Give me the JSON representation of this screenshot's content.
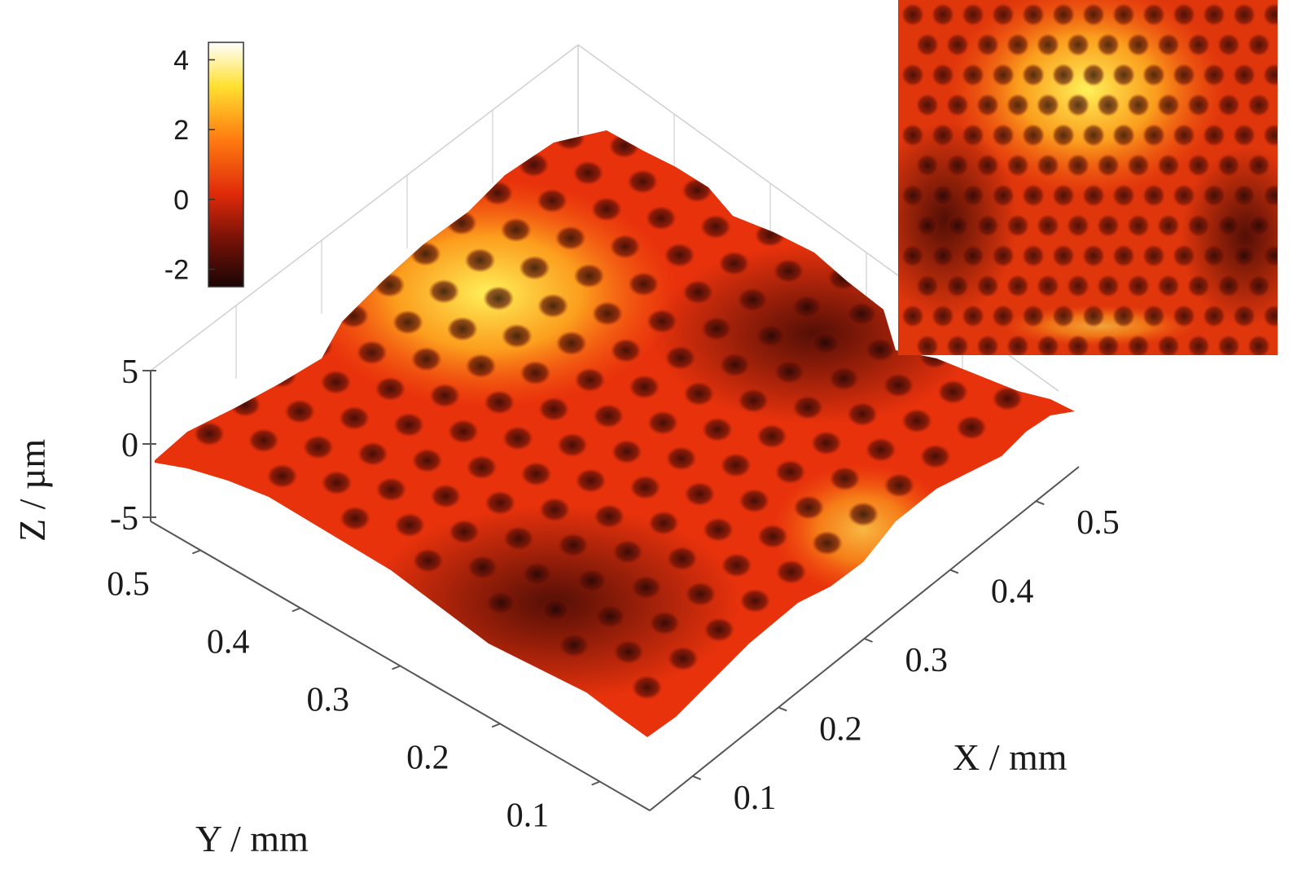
{
  "chart_data": {
    "type": "surface",
    "title": "",
    "xlabel": "X / mm",
    "ylabel": "Y / mm",
    "zlabel": "Z / µm",
    "xticks": [
      "0.1",
      "0.2",
      "0.3",
      "0.4",
      "0.5"
    ],
    "yticks": [
      "0.1",
      "0.2",
      "0.3",
      "0.4",
      "0.5"
    ],
    "zticks": [
      "5",
      "0",
      "-5"
    ],
    "xlim": [
      0.05,
      0.55
    ],
    "ylim": [
      0.05,
      0.55
    ],
    "zlim": [
      -5,
      5
    ],
    "colorbar": {
      "ticks": [
        "4",
        "2",
        "0",
        "-2"
      ],
      "range": [
        -2.5,
        4.5
      ],
      "colormap": "hot"
    },
    "surface": {
      "description_values": {
        "peak_height_um": 4,
        "trough_height_um": -2,
        "dimple_pitch_mm": 0.042
      }
    },
    "inset": {
      "type": "heatmap",
      "colormap": "hot"
    }
  },
  "colors": {
    "axis": "#555555",
    "grid": "#d0d0d0",
    "hot_dark": "#2a0a0a",
    "hot_red": "#e02a0a",
    "hot_orange": "#ff8a10",
    "hot_yellow": "#ffef30",
    "hot_white": "#ffffff"
  }
}
